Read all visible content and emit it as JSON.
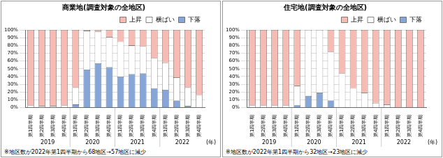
{
  "chart_data": [
    {
      "type": "bar",
      "title": "商業地(調査対象の全地区)",
      "categories": [
        "第1四半期",
        "第2四半期",
        "第3四半期",
        "第4四半期",
        "第1四半期",
        "第2四半期",
        "第3四半期",
        "第4四半期",
        "第1四半期",
        "第2四半期",
        "第3四半期",
        "第4四半期",
        "第1四半期",
        "第2四半期",
        "第3四半期",
        "第4四半期"
      ],
      "year_labels": [
        "2019",
        "2020",
        "2021",
        "2022"
      ],
      "x_unit": "(年)",
      "note": "※地区数が2022年第1四半期から68地区→57地区に減少",
      "series": [
        {
          "name": "上昇",
          "color": "#f6bcb4",
          "values": [
            97,
            98,
            98,
            97,
            74,
            1,
            2,
            9,
            15,
            20,
            21,
            36,
            42,
            61,
            74,
            84
          ]
        },
        {
          "name": "横ばい",
          "color": "#ffffff",
          "values": [
            3,
            2,
            2,
            3,
            22,
            50,
            41,
            39,
            45,
            37,
            35,
            39,
            35,
            30,
            24,
            16
          ]
        },
        {
          "name": "下落",
          "color": "#87a6d8",
          "values": [
            0,
            0,
            0,
            0,
            4,
            49,
            57,
            52,
            40,
            43,
            44,
            25,
            23,
            9,
            2,
            0
          ]
        }
      ],
      "ylim": [
        0,
        100
      ],
      "yticks": [
        {
          "value": 0,
          "label": "0%"
        },
        {
          "value": 10,
          "label": "10%"
        },
        {
          "value": 20,
          "label": "20%"
        },
        {
          "value": 30,
          "label": "30%"
        },
        {
          "value": 40,
          "label": "40%"
        },
        {
          "value": 50,
          "label": "50%"
        },
        {
          "value": 60,
          "label": "60%"
        },
        {
          "value": 70,
          "label": "70%"
        },
        {
          "value": 80,
          "label": "80%"
        },
        {
          "value": 90,
          "label": "90%"
        },
        {
          "value": 100,
          "label": "100%"
        }
      ],
      "stacked": true,
      "grid": true,
      "legend": "upper right"
    },
    {
      "type": "bar",
      "title": "住宅地(調査対象の全地区)",
      "categories": [
        "第1四半期",
        "第2四半期",
        "第3四半期",
        "第4四半期",
        "第1四半期",
        "第2四半期",
        "第3四半期",
        "第4四半期",
        "第1四半期",
        "第2四半期",
        "第3四半期",
        "第4四半期",
        "第1四半期",
        "第2四半期",
        "第3四半期",
        "第4四半期"
      ],
      "year_labels": [
        "2019",
        "2020",
        "2021",
        "2022"
      ],
      "x_unit": "(年)",
      "note": "※地区数が2022年第1四半期から32地区→23地区に減少",
      "series": [
        {
          "name": "上昇",
          "color": "#f6bcb4",
          "values": [
            97,
            97,
            97,
            97,
            72,
            0,
            0,
            28,
            56,
            75,
            81,
            94,
            96,
            100,
            100,
            100
          ]
        },
        {
          "name": "横ばい",
          "color": "#ffffff",
          "values": [
            3,
            3,
            3,
            3,
            25,
            85,
            81,
            63,
            44,
            25,
            19,
            6,
            4,
            0,
            0,
            0
          ]
        },
        {
          "name": "下落",
          "color": "#87a6d8",
          "values": [
            0,
            0,
            0,
            0,
            3,
            15,
            19,
            9,
            0,
            0,
            0,
            0,
            0,
            0,
            0,
            0
          ]
        }
      ],
      "ylim": [
        0,
        100
      ],
      "yticks": [
        {
          "value": 0,
          "label": "0%"
        },
        {
          "value": 10,
          "label": "10%"
        },
        {
          "value": 20,
          "label": "20%"
        },
        {
          "value": 30,
          "label": "30%"
        },
        {
          "value": 40,
          "label": "40%"
        },
        {
          "value": 50,
          "label": "50%"
        },
        {
          "value": 60,
          "label": "60%"
        },
        {
          "value": 70,
          "label": "70%"
        },
        {
          "value": 80,
          "label": "80%"
        },
        {
          "value": 90,
          "label": "90%"
        },
        {
          "value": 100,
          "label": "100%"
        }
      ],
      "stacked": true,
      "grid": true,
      "legend": "upper right"
    }
  ]
}
